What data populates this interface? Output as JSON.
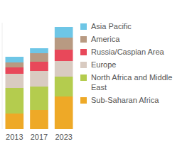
{
  "chart_data": {
    "type": "bar",
    "stacked": true,
    "tick_labels": "x",
    "categories": [
      "2013",
      "2017",
      "2023"
    ],
    "ylim": [
      0,
      150
    ],
    "series": [
      {
        "name": "Sub-Saharan Africa",
        "color": "#eea927",
        "values": [
          22,
          27,
          46
        ]
      },
      {
        "name": "North Africa and Middle East",
        "color": "#b4cc4e",
        "values": [
          36,
          33,
          28
        ]
      },
      {
        "name": "Europe",
        "color": "#d9cbc1",
        "values": [
          20,
          22,
          22
        ]
      },
      {
        "name": "Russia/Caspian Area",
        "color": "#e8485a",
        "values": [
          9,
          13,
          16
        ]
      },
      {
        "name": "America",
        "color": "#b89a82",
        "values": [
          7,
          12,
          17
        ]
      },
      {
        "name": "Asia Pacific",
        "color": "#6ec6e6",
        "values": [
          8,
          7,
          15
        ]
      }
    ],
    "legend": "right"
  }
}
